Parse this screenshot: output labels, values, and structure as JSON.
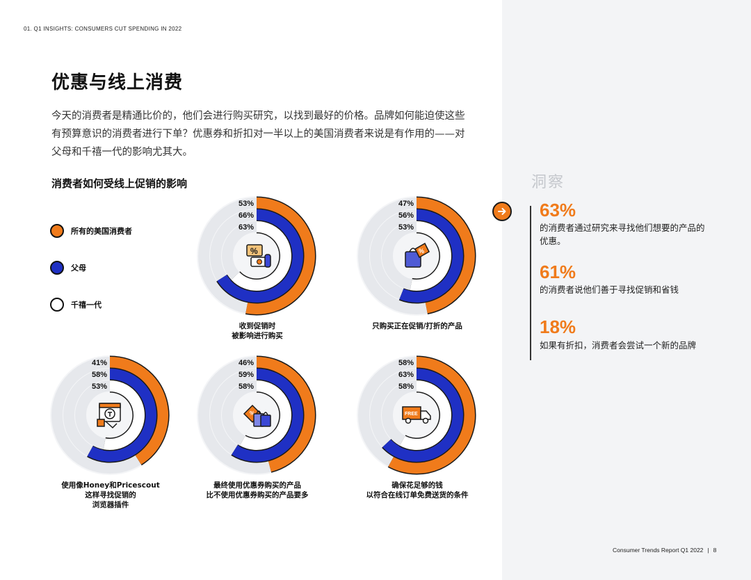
{
  "header": {
    "running_head": "01. Q1 INSIGHTS: CONSUMERS CUT SPENDING IN 2022"
  },
  "page_title": "优惠与线上消费",
  "intro": "今天的消费者是精通比价的，他们会进行购买研究，以找到最好的价格。品牌如何能迫使这些有预算意识的消费者进行下单？优惠券和折扣对一半以上的美国消费者来说是有作用的——对父母和千禧一代的影响尤其大。",
  "chart_heading": "消费者如何受线上促销的影响",
  "legend": [
    {
      "label": "所有的美国消费者",
      "color": "#f07b1b"
    },
    {
      "label": "父母",
      "color": "#1f30c4"
    },
    {
      "label": "千禧一代",
      "color": "#ffffff"
    }
  ],
  "colors": {
    "accent": "#f07b1b",
    "parents": "#1f30c4",
    "outline": "#1a1a1a",
    "panel": "#f3f4f6"
  },
  "chart_data": {
    "type": "radial-bar",
    "series_names": [
      "所有的美国消费者",
      "父母",
      "千禧一代"
    ],
    "panels": [
      {
        "caption": [
          "收到促销时",
          "被影响进行购买"
        ],
        "icon": "coupon-cash-icon",
        "values": [
          53,
          66,
          63
        ],
        "labels": [
          "53%",
          "66%",
          "63%"
        ]
      },
      {
        "caption": [
          "只购买正在促销/打折的产品"
        ],
        "icon": "discount-tag-bag-icon",
        "values": [
          47,
          56,
          53
        ],
        "labels": [
          "47%",
          "56%",
          "53%"
        ]
      },
      {
        "caption": [
          "使用像Honey和Pricescout",
          "这样寻找促销的",
          "浏览器插件"
        ],
        "icon": "browser-plugin-icon",
        "values": [
          41,
          58,
          53
        ],
        "labels": [
          "41%",
          "58%",
          "53%"
        ]
      },
      {
        "caption": [
          "最终使用优惠券购买的产品",
          "比不使用优惠券购买的产品要多"
        ],
        "icon": "shopping-bags-icon",
        "values": [
          46,
          59,
          58
        ],
        "labels": [
          "46%",
          "59%",
          "58%"
        ]
      },
      {
        "caption": [
          "确保花足够的钱",
          "以符合在线订单免费送货的条件"
        ],
        "icon": "free-delivery-truck-icon",
        "values": [
          58,
          63,
          58
        ],
        "labels": [
          "58%",
          "63%",
          "58%"
        ]
      }
    ]
  },
  "insights": {
    "title": "洞察",
    "stats": [
      {
        "value": "63%",
        "text": "的消费者通过研究来寻找他们想要的产品的优惠。"
      },
      {
        "value": "61%",
        "text": "的消费者说他们善于寻找促销和省钱"
      },
      {
        "value": "18%",
        "text": "如果有折扣，消费者会尝试一个新的品牌"
      }
    ]
  },
  "footer": {
    "report": "Consumer Trends Report Q1 2022",
    "page": "8"
  }
}
